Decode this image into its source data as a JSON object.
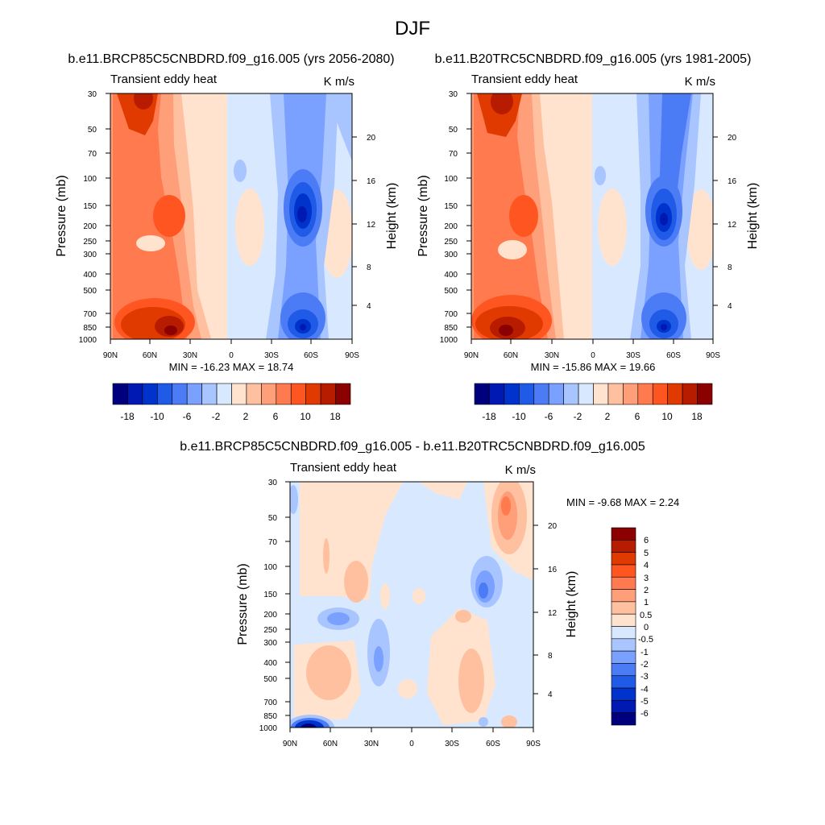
{
  "page_title": "DJF",
  "colors": {
    "blue_to_red_18": [
      "#00007f",
      "#0019b3",
      "#0033cc",
      "#1f5be6",
      "#4c7cf5",
      "#7aa1ff",
      "#a9c5ff",
      "#d8e8ff",
      "#ffe3cf",
      "#ffc0a0",
      "#ff9f7a",
      "#ff7a4f",
      "#ff5520",
      "#e03a00",
      "#b81c00",
      "#8b0000"
    ],
    "blue_to_red_6": [
      "#8b0000",
      "#b81c00",
      "#e03a00",
      "#ff5520",
      "#ff7a4f",
      "#ff9f7a",
      "#ffc0a0",
      "#ffe3cf",
      "#d8e8ff",
      "#a9c5ff",
      "#7aa1ff",
      "#4c7cf5",
      "#1f5be6",
      "#0033cc",
      "#0019b3",
      "#00007f"
    ]
  },
  "chart_data": [
    {
      "type": "heatmap",
      "title": "b.e11.BRCP85C5CNBDRD.f09_g16.005 (yrs 2056-2080)",
      "left_subtitle": "Transient eddy heat",
      "right_subtitle": "K m/s",
      "ylabel": "Pressure (mb)",
      "ylabel_right": "Height (km)",
      "x_ticks": [
        "90N",
        "60N",
        "30N",
        "0",
        "30S",
        "60S",
        "90S"
      ],
      "y_ticks": [
        "30",
        "50",
        "70",
        "100",
        "150",
        "200",
        "250",
        "300",
        "400",
        "500",
        "700",
        "850",
        "1000"
      ],
      "y_ticks_right": [
        "20",
        "16",
        "12",
        "8",
        "4"
      ],
      "minmax_text": "MIN = -16.23  MAX = 18.74",
      "colorbar_labels": [
        "-18",
        "-10",
        "-6",
        "-2",
        "2",
        "6",
        "10",
        "18"
      ],
      "min": -16.23,
      "max": 18.74
    },
    {
      "type": "heatmap",
      "title": "b.e11.B20TRC5CNBDRD.f09_g16.005 (yrs 1981-2005)",
      "left_subtitle": "Transient eddy heat",
      "right_subtitle": "K m/s",
      "ylabel": "Pressure (mb)",
      "ylabel_right": "Height (km)",
      "x_ticks": [
        "90N",
        "60N",
        "30N",
        "0",
        "30S",
        "60S",
        "90S"
      ],
      "y_ticks": [
        "30",
        "50",
        "70",
        "100",
        "150",
        "200",
        "250",
        "300",
        "400",
        "500",
        "700",
        "850",
        "1000"
      ],
      "y_ticks_right": [
        "20",
        "16",
        "12",
        "8",
        "4"
      ],
      "minmax_text": "MIN = -15.86  MAX = 19.66",
      "colorbar_labels": [
        "-18",
        "-10",
        "-6",
        "-2",
        "2",
        "6",
        "10",
        "18"
      ],
      "min": -15.86,
      "max": 19.66
    },
    {
      "type": "heatmap",
      "title": "b.e11.BRCP85C5CNBDRD.f09_g16.005 - b.e11.B20TRC5CNBDRD.f09_g16.005",
      "left_subtitle": "Transient eddy heat",
      "right_subtitle": "K m/s",
      "ylabel": "Pressure (mb)",
      "ylabel_right": "Height (km)",
      "x_ticks": [
        "90N",
        "60N",
        "30N",
        "0",
        "30S",
        "60S",
        "90S"
      ],
      "y_ticks": [
        "30",
        "50",
        "70",
        "100",
        "150",
        "200",
        "250",
        "300",
        "400",
        "500",
        "700",
        "850",
        "1000"
      ],
      "y_ticks_right": [
        "20",
        "16",
        "12",
        "8",
        "4"
      ],
      "minmax_text": "MIN =  -9.68  MAX =   2.24",
      "colorbar_labels": [
        "6",
        "5",
        "4",
        "3",
        "2",
        "1",
        "0.5",
        "0",
        "-0.5",
        "-1",
        "-2",
        "-3",
        "-4",
        "-5",
        "-6"
      ],
      "min": -9.68,
      "max": 2.24
    }
  ]
}
